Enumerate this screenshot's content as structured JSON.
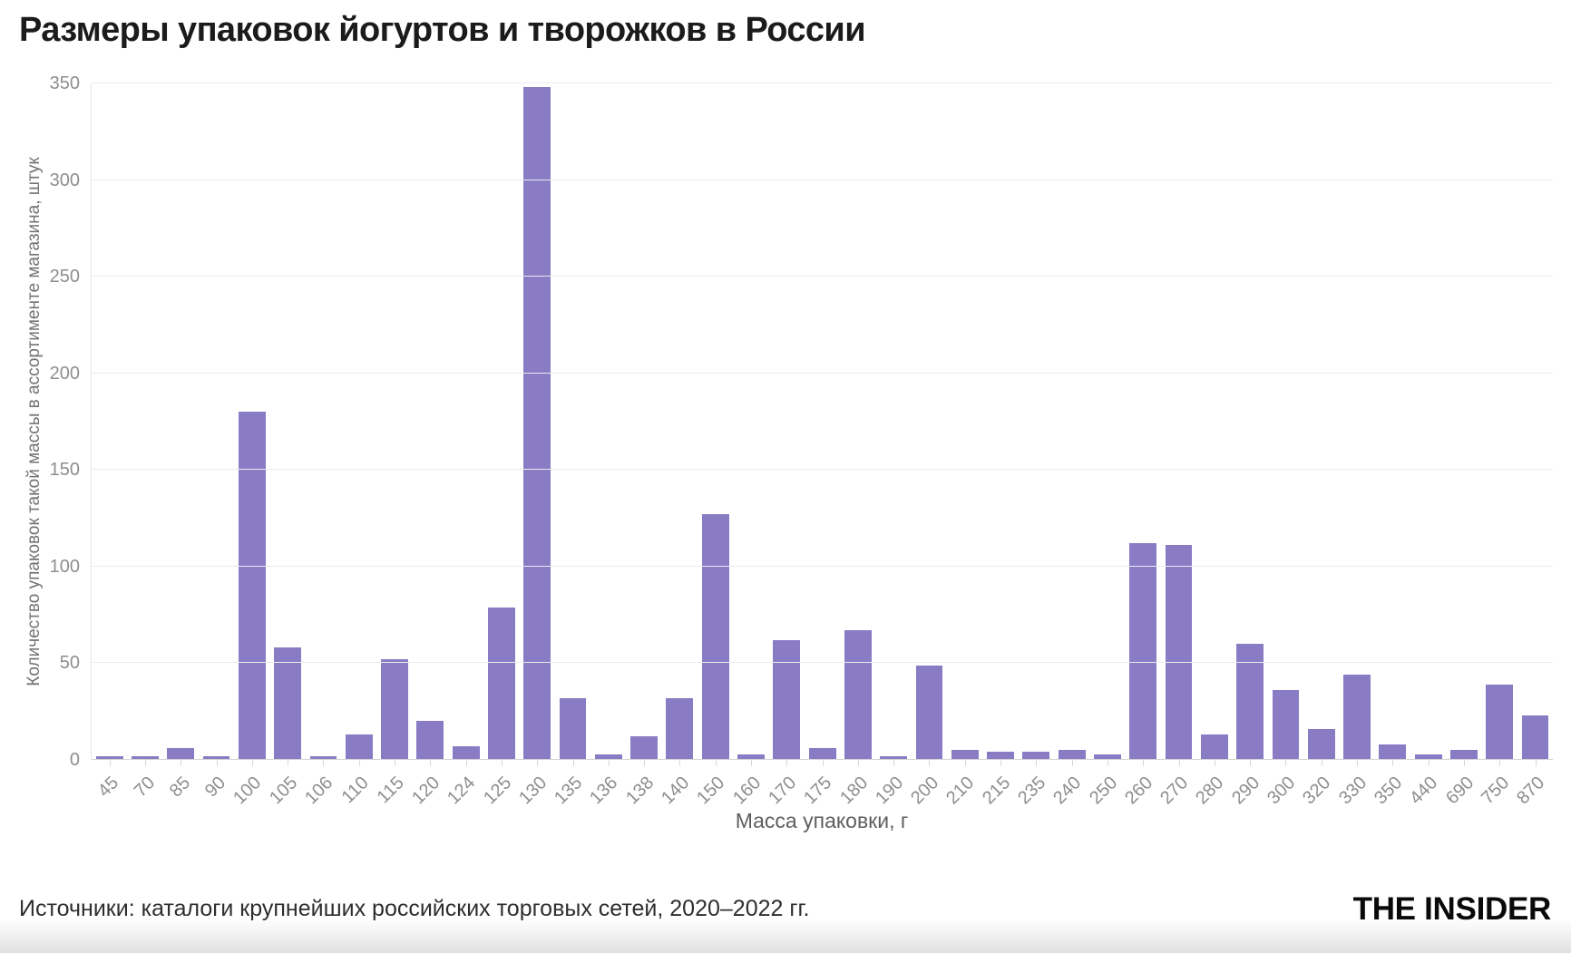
{
  "page": {
    "footer": {
      "source": "Источники: каталоги крупнейших российских торговых сетей, 2020–2022 гг.",
      "logo": "THE INSIDER"
    }
  },
  "chart_data": {
    "type": "bar",
    "title": "Размеры упаковок йогуртов и творожков в России",
    "xlabel": "Масса упаковки, г",
    "ylabel": "Количество упаковок такой массы в ассортименте магазина, штук",
    "categories": [
      "45",
      "70",
      "85",
      "90",
      "100",
      "105",
      "106",
      "110",
      "115",
      "120",
      "124",
      "125",
      "130",
      "135",
      "136",
      "138",
      "140",
      "150",
      "160",
      "170",
      "175",
      "180",
      "190",
      "200",
      "210",
      "215",
      "235",
      "240",
      "250",
      "260",
      "270",
      "280",
      "290",
      "300",
      "320",
      "330",
      "350",
      "440",
      "690",
      "750",
      "870"
    ],
    "values": [
      2,
      2,
      6,
      2,
      180,
      58,
      2,
      13,
      52,
      20,
      7,
      79,
      348,
      32,
      3,
      12,
      32,
      127,
      3,
      62,
      6,
      67,
      2,
      49,
      5,
      4,
      4,
      5,
      3,
      112,
      111,
      13,
      60,
      36,
      16,
      44,
      8,
      3,
      5,
      39,
      23
    ],
    "ylim": [
      0,
      350
    ],
    "yticks": [
      0,
      50,
      100,
      150,
      200,
      250,
      300,
      350
    ],
    "grid": "horizontal",
    "legend": "none",
    "colors": {
      "bar": "#897CC4",
      "grid": "#ECECEC",
      "axis": "#D9D9D9",
      "tick_text": "#8E8E8E",
      "title": "#1B1B1B"
    }
  }
}
